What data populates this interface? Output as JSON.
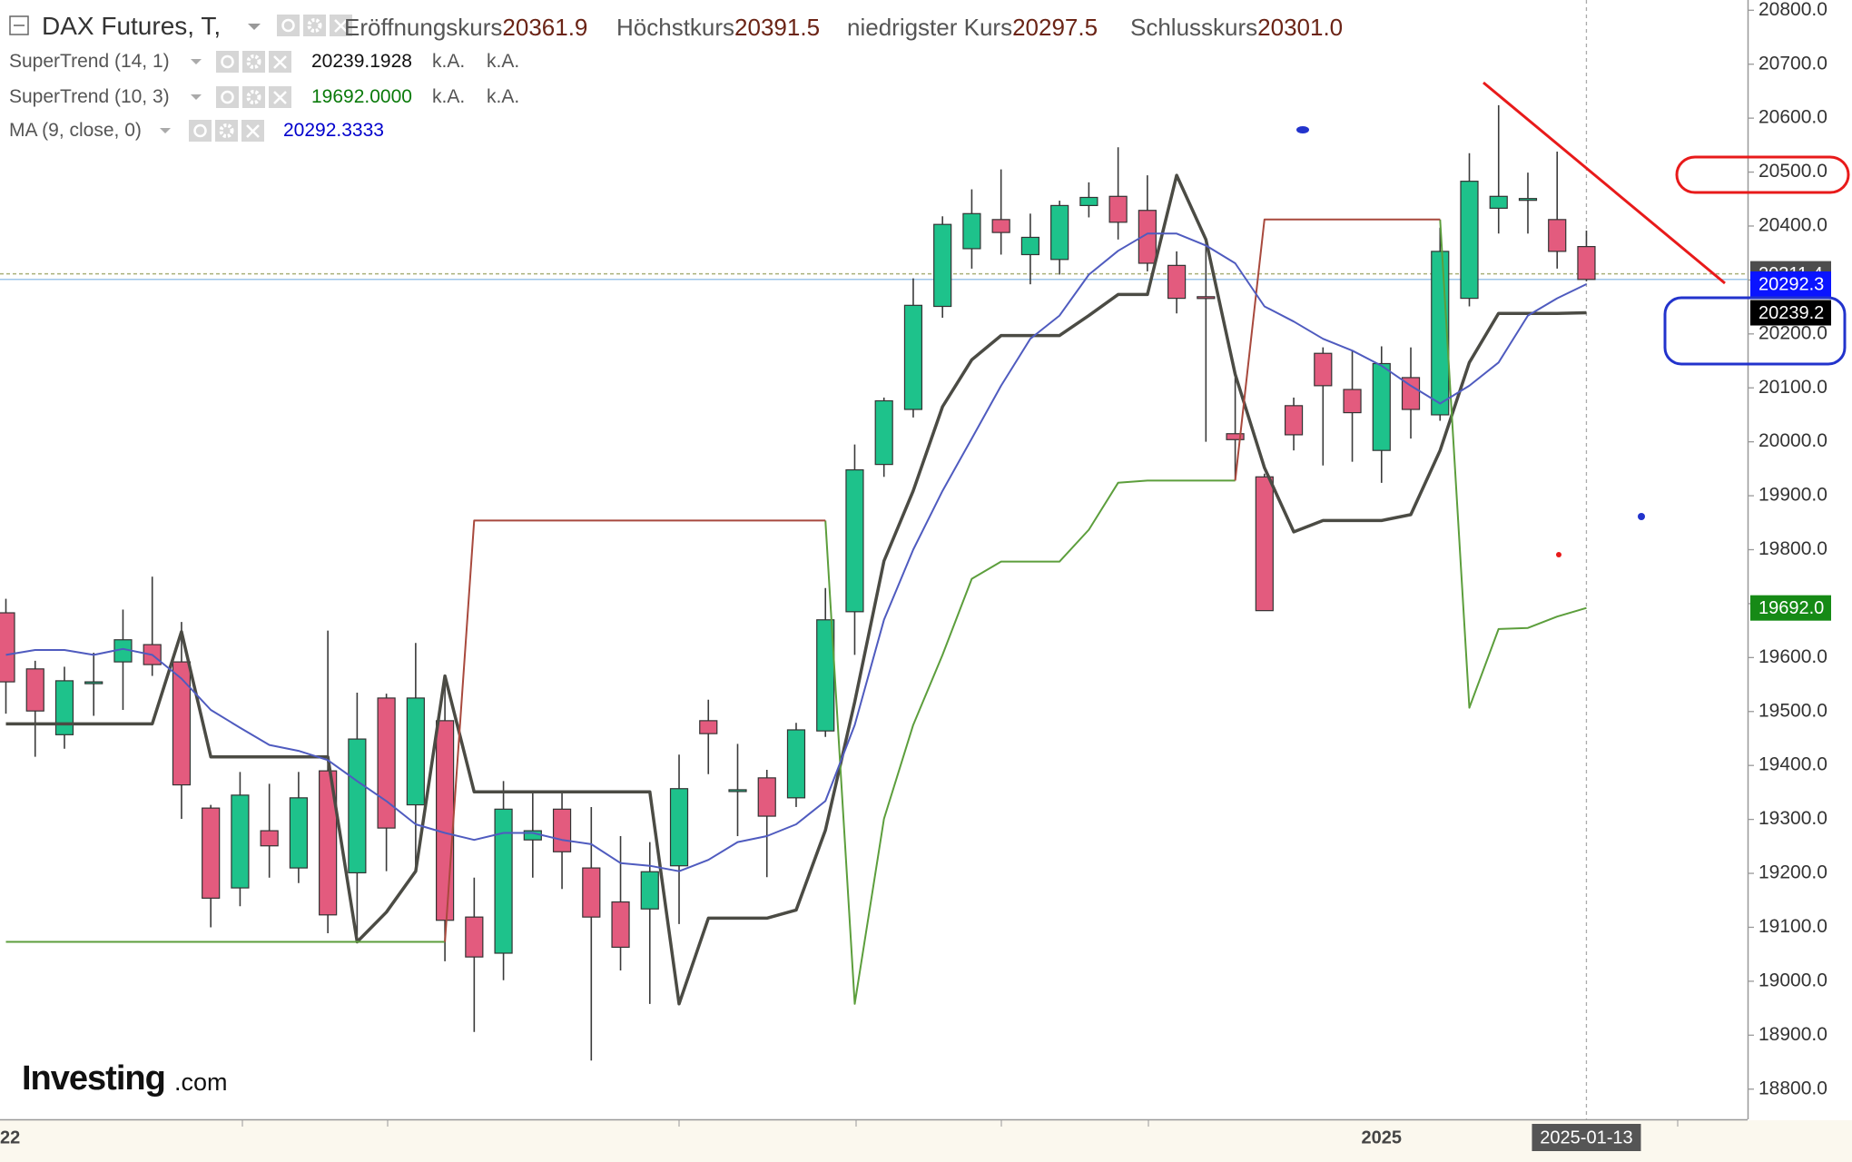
{
  "header": {
    "title": "DAX Futures, T,",
    "fields": [
      {
        "name": "Eröffnungskurs",
        "value": 20361.9
      },
      {
        "name": "Höchstkurs",
        "value": 20391.5
      },
      {
        "name": "niedrigster Kurs",
        "value": 20297.5
      },
      {
        "name": "Schlusskurs",
        "value": 20301.0,
        "value_label": "20301.0"
      }
    ]
  },
  "logo": {
    "main": "Investing",
    "suffix": ".com"
  },
  "chart_data": {
    "type": "candlestick",
    "categories": [
      "22",
      null,
      null,
      null,
      null,
      null,
      null,
      null,
      null,
      null,
      null,
      null,
      null,
      null,
      null,
      null,
      null,
      null,
      null,
      null,
      null,
      null,
      null,
      null,
      null,
      null,
      null,
      null,
      null,
      null,
      null,
      null,
      null,
      null,
      null,
      null,
      null,
      null,
      null,
      null,
      null,
      null,
      null,
      null,
      null,
      null,
      null,
      "2025",
      null,
      null,
      null,
      null,
      null,
      null,
      "2025-01-13"
    ],
    "open": [
      19683,
      19579,
      19457,
      19553,
      19592,
      19624,
      19592,
      19321,
      19173,
      19279,
      19210,
      19390,
      19201,
      19525,
      19327,
      19483,
      19119,
      19052,
      19262,
      19319,
      19210,
      19147,
      19134,
      19214,
      19483,
      19353,
      19377,
      19340,
      19464,
      19685,
      19958,
      20060,
      20251,
      20358,
      20412,
      20347,
      20338,
      20438,
      20455,
      20429,
      20327,
      20269,
      20015,
      19935,
      20067,
      20164,
      20097,
      19984,
      20119,
      20050,
      20266,
      20433,
      20451,
      20412,
      20361.9
    ],
    "high": [
      19709,
      19594,
      19583,
      19609,
      19689,
      19750,
      19666,
      19327,
      19388,
      19366,
      19388,
      19650,
      19535,
      19533,
      19627,
      19555,
      19192,
      19371,
      19349,
      19349,
      19323,
      19269,
      19258,
      19420,
      19522,
      19440,
      19392,
      19479,
      19729,
      19995,
      20082,
      20303,
      20418,
      20468,
      20505,
      20423,
      20447,
      20481,
      20546,
      20494,
      20353,
      20375,
      20119,
      19941,
      20082,
      20175,
      20169,
      20177,
      20175,
      20397,
      20535,
      20624,
      20499,
      20538,
      20391.5
    ],
    "low": [
      19496,
      19416,
      19431,
      19492,
      19503,
      19566,
      19301,
      19100,
      19139,
      19192,
      19182,
      19089,
      19085,
      19204,
      19204,
      19037,
      18906,
      19002,
      19192,
      19171,
      18853,
      19020,
      18958,
      19106,
      19384,
      19269,
      19193,
      19323,
      19453,
      19605,
      19935,
      20045,
      20230,
      20321,
      20347,
      20292,
      20310,
      20416,
      20375,
      20316,
      20238,
      20000,
      19930,
      19687,
      19984,
      19956,
      19963,
      19924,
      20006,
      20039,
      20251,
      20386,
      20386,
      20321,
      20297.5
    ],
    "close": [
      19555,
      19501,
      19557,
      19555,
      19633,
      19587,
      19364,
      19154,
      19345,
      19251,
      19340,
      19123,
      19449,
      19284,
      19525,
      19113,
      19045,
      19319,
      19279,
      19240,
      19119,
      19063,
      19203,
      19357,
      19459,
      19355,
      19306,
      19466,
      19670,
      19948,
      20076,
      20253,
      20403,
      20423,
      20388,
      20379,
      20438,
      20453,
      20407,
      20331,
      20266,
      20268,
      20004,
      19687,
      20013,
      20104,
      20054,
      20145,
      20060,
      20353,
      20483,
      20455,
      20451,
      20353,
      20301
    ],
    "up_color": "#1ec28b",
    "down_color": "#e35b7e",
    "indicators": [
      {
        "name": "SuperTrend (14, 1)",
        "value": 20239.1928,
        "value_color": "#111111",
        "extras": [
          "k.A.",
          "k.A."
        ],
        "lines": [
          {
            "color": "#4b4b44",
            "values": [
              19477,
              19477,
              19477,
              19477,
              19477,
              19477,
              19648,
              19416,
              19416,
              19416,
              19416,
              19416,
              19073,
              19128,
              19204,
              19566,
              19351,
              19351,
              19351,
              19351,
              19351,
              19351,
              19351,
              18958,
              19117,
              19117,
              19117,
              19132,
              19280,
              19518,
              19779,
              19909,
              20065,
              20152,
              20197,
              20197,
              20197,
              20234,
              20273,
              20273,
              20494,
              20375,
              20125,
              19952,
              19833,
              19854,
              19854,
              19854,
              19865,
              19984,
              20147,
              20238,
              20238,
              20238,
              20239.1928
            ]
          }
        ]
      },
      {
        "name": "SuperTrend (10, 3)",
        "value": 19692,
        "value_label": "19692.0000",
        "value_color": "#0a7a0a",
        "extras": [
          "k.A.",
          "k.A."
        ],
        "lines": [
          {
            "color": "#5c9e3c",
            "values": [
              19073,
              19073,
              19073,
              19073,
              19073,
              19073,
              19073,
              19073,
              19073,
              19073,
              19073,
              19073,
              19073,
              19073,
              19073,
              19073,
              null,
              null,
              null,
              null,
              null,
              null,
              null,
              null,
              null,
              null,
              null,
              null,
              19854,
              18958,
              19301,
              19475,
              19605,
              19746,
              19778,
              19778,
              19778,
              19837,
              19924,
              19928,
              19928,
              19928,
              19928,
              null,
              null,
              null,
              null,
              null,
              null,
              20412,
              19507,
              19653,
              19655,
              19676,
              19692
            ]
          },
          {
            "color": "#a8493d",
            "values": [
              null,
              null,
              null,
              null,
              null,
              null,
              null,
              null,
              null,
              null,
              null,
              null,
              null,
              null,
              null,
              19073,
              19854,
              19854,
              19854,
              19854,
              19854,
              19854,
              19854,
              19854,
              19854,
              19854,
              19854,
              19854,
              19854,
              null,
              null,
              null,
              null,
              null,
              null,
              null,
              null,
              null,
              null,
              null,
              null,
              null,
              19928,
              20412,
              20412,
              20412,
              20412,
              20412,
              20412,
              20412,
              null,
              null,
              null,
              null,
              null
            ]
          }
        ]
      },
      {
        "name": "MA (9, close, 0)",
        "value": 20292.3333,
        "value_color": "#0000cc",
        "extras": [],
        "lines": [
          {
            "color": "#4f5bbf",
            "values": [
              19605,
              19614,
              19614,
              19605,
              19616,
              19605,
              19561,
              19503,
              19470,
              19438,
              19427,
              19410,
              19371,
              19334,
              19291,
              19275,
              19262,
              19275,
              19275,
              19262,
              19254,
              19219,
              19214,
              19204,
              19225,
              19258,
              19269,
              19291,
              19334,
              19475,
              19670,
              19800,
              19909,
              20006,
              20104,
              20191,
              20234,
              20310,
              20354,
              20386,
              20386,
              20364,
              20331,
              20251,
              20223,
              20191,
              20169,
              20141,
              20104,
              20071,
              20104,
              20147,
              20234,
              20266,
              20292.3333
            ]
          }
        ]
      }
    ],
    "ylim": [
      18744,
      20819
    ],
    "yticks": [
      {
        "value": 20800,
        "label": "20800.0"
      },
      {
        "value": 20700,
        "label": "20700.0"
      },
      {
        "value": 20600,
        "label": "20600.0"
      },
      {
        "value": 20500,
        "label": "20500.0"
      },
      {
        "value": 20400,
        "label": "20400.0"
      },
      {
        "value": 20300,
        "label": "20300.0"
      },
      {
        "value": 20200,
        "label": "20200.0"
      },
      {
        "value": 20100,
        "label": "20100.0"
      },
      {
        "value": 20000,
        "label": "20000.0"
      },
      {
        "value": 19900,
        "label": "19900.0"
      },
      {
        "value": 19800,
        "label": "19800.0"
      },
      {
        "value": 19700,
        "label": "19700.0"
      },
      {
        "value": 19600,
        "label": "19600.0"
      },
      {
        "value": 19500,
        "label": "19500.0"
      },
      {
        "value": 19400,
        "label": "19400.0"
      },
      {
        "value": 19300,
        "label": "19300.0"
      },
      {
        "value": 19200,
        "label": "19200.0"
      },
      {
        "value": 19100,
        "label": "19100.0"
      },
      {
        "value": 19000,
        "label": "19000.0"
      },
      {
        "value": 18900,
        "label": "18900.0"
      },
      {
        "value": 18800,
        "label": "18800.0"
      }
    ],
    "price_tags": [
      {
        "value": 20311.4,
        "color": "#4d4d4d"
      },
      {
        "value": 20292.3,
        "color": "#0a14ff"
      },
      {
        "value": 20239.2,
        "color": "#000000"
      },
      {
        "value": 19692,
        "label": "19692.0",
        "color": "#168a16"
      }
    ]
  }
}
